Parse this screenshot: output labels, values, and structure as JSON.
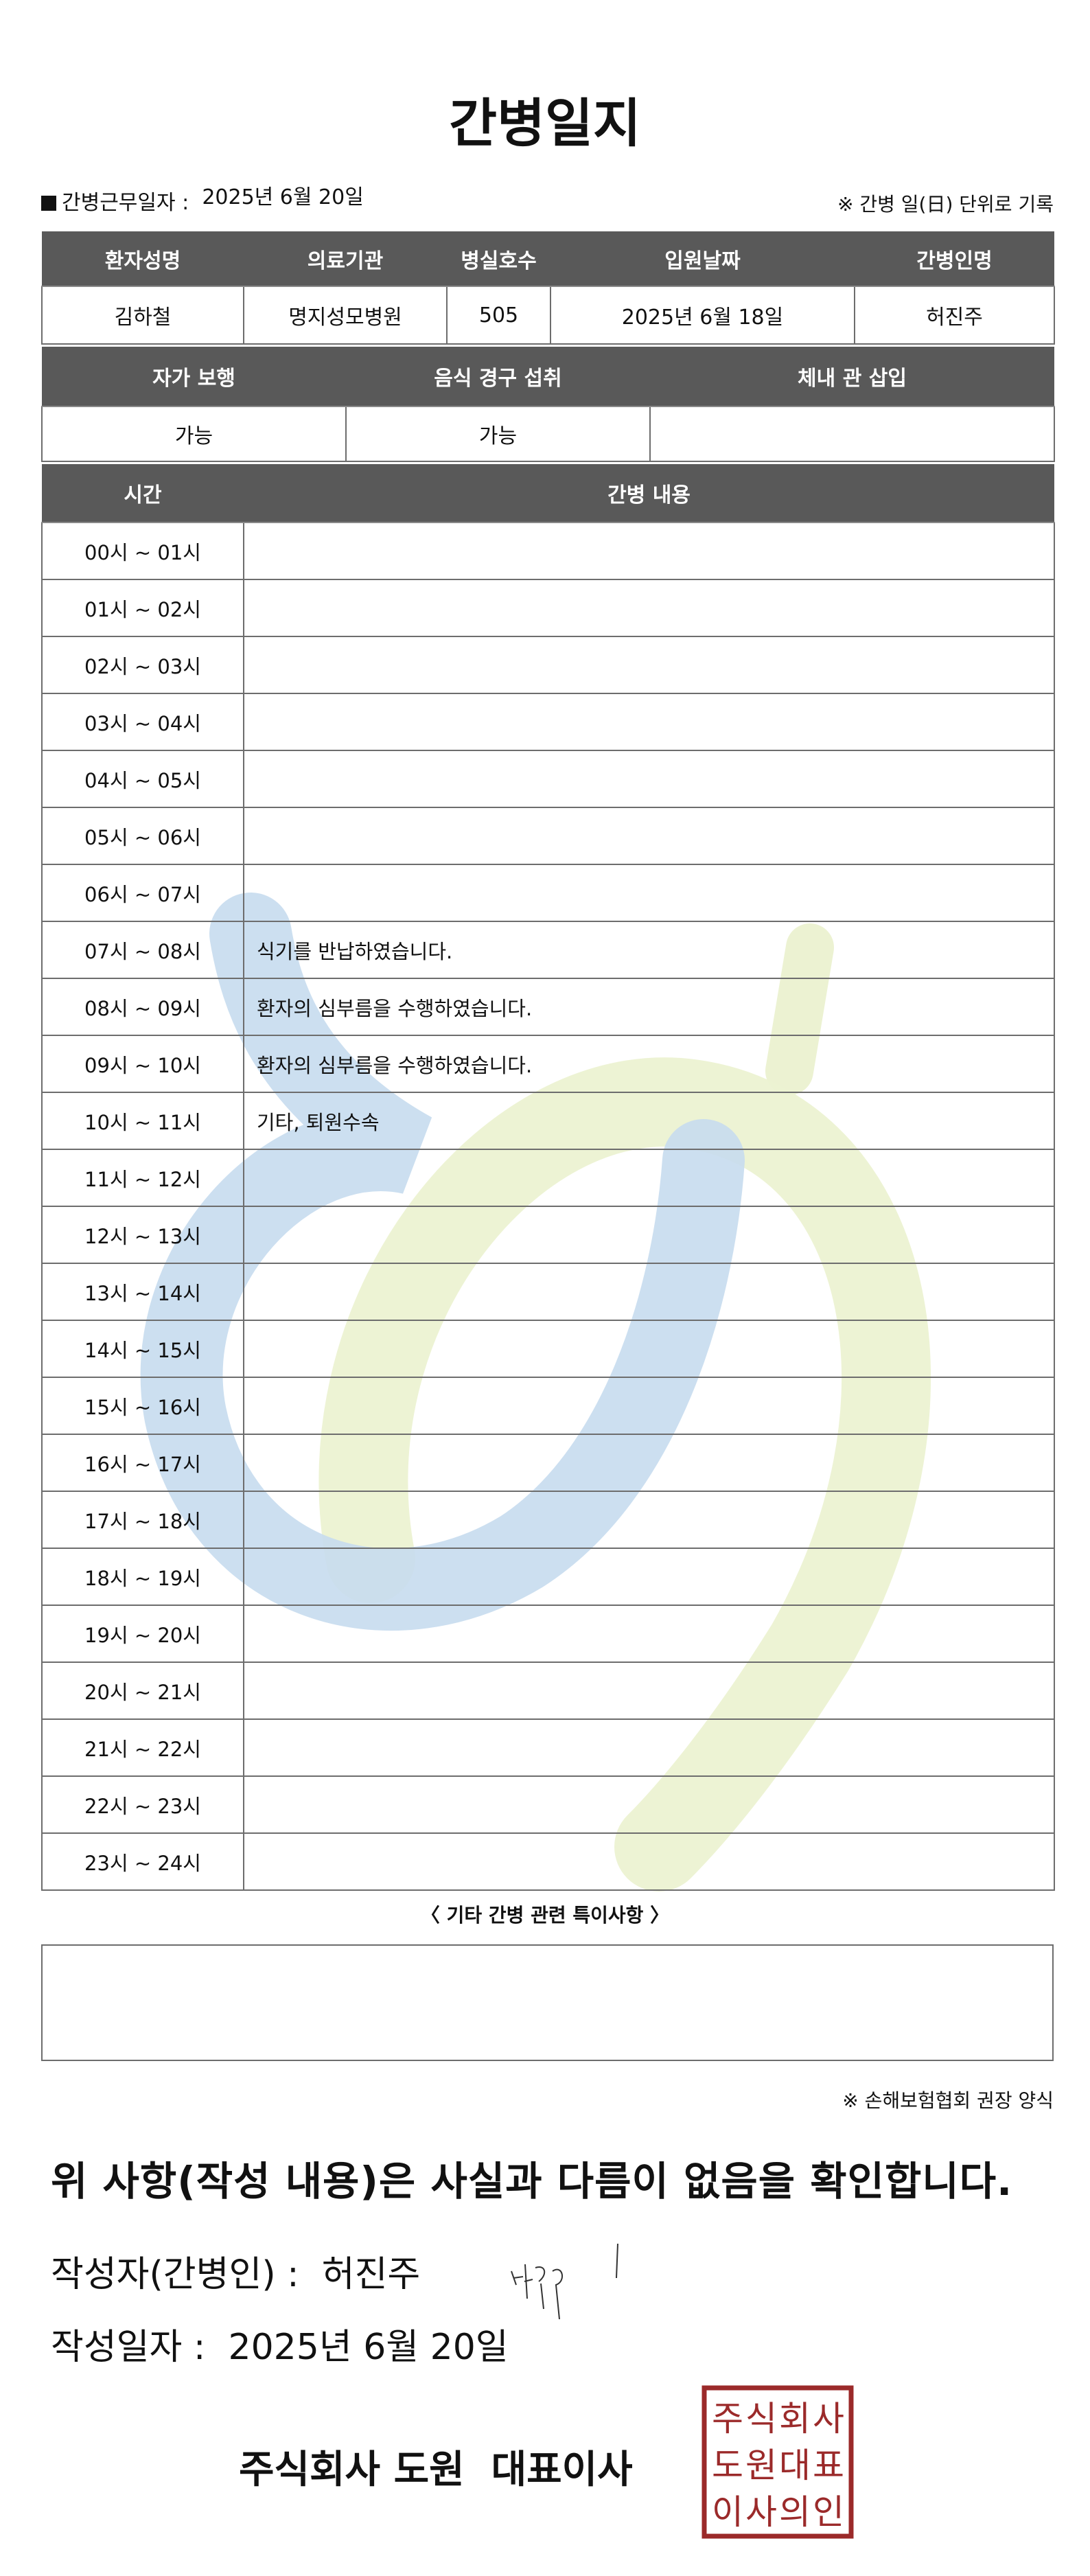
{
  "title": "간병일지",
  "work_date": {
    "label": "간병근무일자 :",
    "value": "2025년 6월 20일"
  },
  "unit_note": "※ 간병 일(日) 단위로 기록",
  "patient_table": {
    "headers": [
      "환자성명",
      "의료기관",
      "병실호수",
      "입원날짜",
      "간병인명"
    ],
    "values": [
      "김하철",
      "명지성모병원",
      "505",
      "2025년 6월 18일",
      "허진주"
    ]
  },
  "status_table": {
    "headers": [
      "자가 보행",
      "음식 경구 섭취",
      "체내 관 삽입"
    ],
    "values": [
      "가능",
      "가능",
      ""
    ]
  },
  "log_table": {
    "headers": [
      "시간",
      "간병 내용"
    ],
    "rows": [
      {
        "time": "00시 ~ 01시",
        "content": ""
      },
      {
        "time": "01시 ~ 02시",
        "content": ""
      },
      {
        "time": "02시 ~ 03시",
        "content": ""
      },
      {
        "time": "03시 ~ 04시",
        "content": ""
      },
      {
        "time": "04시 ~ 05시",
        "content": ""
      },
      {
        "time": "05시 ~ 06시",
        "content": ""
      },
      {
        "time": "06시 ~ 07시",
        "content": ""
      },
      {
        "time": "07시 ~ 08시",
        "content": "식기를 반납하였습니다."
      },
      {
        "time": "08시 ~ 09시",
        "content": "환자의 심부름을 수행하였습니다."
      },
      {
        "time": "09시 ~ 10시",
        "content": "환자의 심부름을 수행하였습니다."
      },
      {
        "time": "10시 ~ 11시",
        "content": "기타, 퇴원수속"
      },
      {
        "time": "11시 ~ 12시",
        "content": ""
      },
      {
        "time": "12시 ~ 13시",
        "content": ""
      },
      {
        "time": "13시 ~ 14시",
        "content": ""
      },
      {
        "time": "14시 ~ 15시",
        "content": ""
      },
      {
        "time": "15시 ~ 16시",
        "content": ""
      },
      {
        "time": "16시 ~ 17시",
        "content": ""
      },
      {
        "time": "17시 ~ 18시",
        "content": ""
      },
      {
        "time": "18시 ~ 19시",
        "content": ""
      },
      {
        "time": "19시 ~ 20시",
        "content": ""
      },
      {
        "time": "20시 ~ 21시",
        "content": ""
      },
      {
        "time": "21시 ~ 22시",
        "content": ""
      },
      {
        "time": "22시 ~ 23시",
        "content": ""
      },
      {
        "time": "23시 ~ 24시",
        "content": ""
      }
    ]
  },
  "other_notes": {
    "label": "〈 기타 간병 관련 특이사항 〉",
    "value": ""
  },
  "form_note": "※ 손해보험협회 권장 양식",
  "confirmation": "위 사항(작성 내용)은 사실과 다름이 없음을 확인합니다.",
  "writer": {
    "label": "작성자(간병인) :",
    "name": "허진주",
    "signature": "허진주"
  },
  "written_date": {
    "label": "작성일자 :",
    "value": "2025년 6월 20일"
  },
  "company": "주식회사 도원  대표이사",
  "stamp": {
    "text": "주식회사도원대표이사의인",
    "color": "#9b2a2a"
  },
  "watermark_colors": {
    "blue": "#c6dcee",
    "green": "#ecf2d2"
  },
  "header_color": "#595959"
}
